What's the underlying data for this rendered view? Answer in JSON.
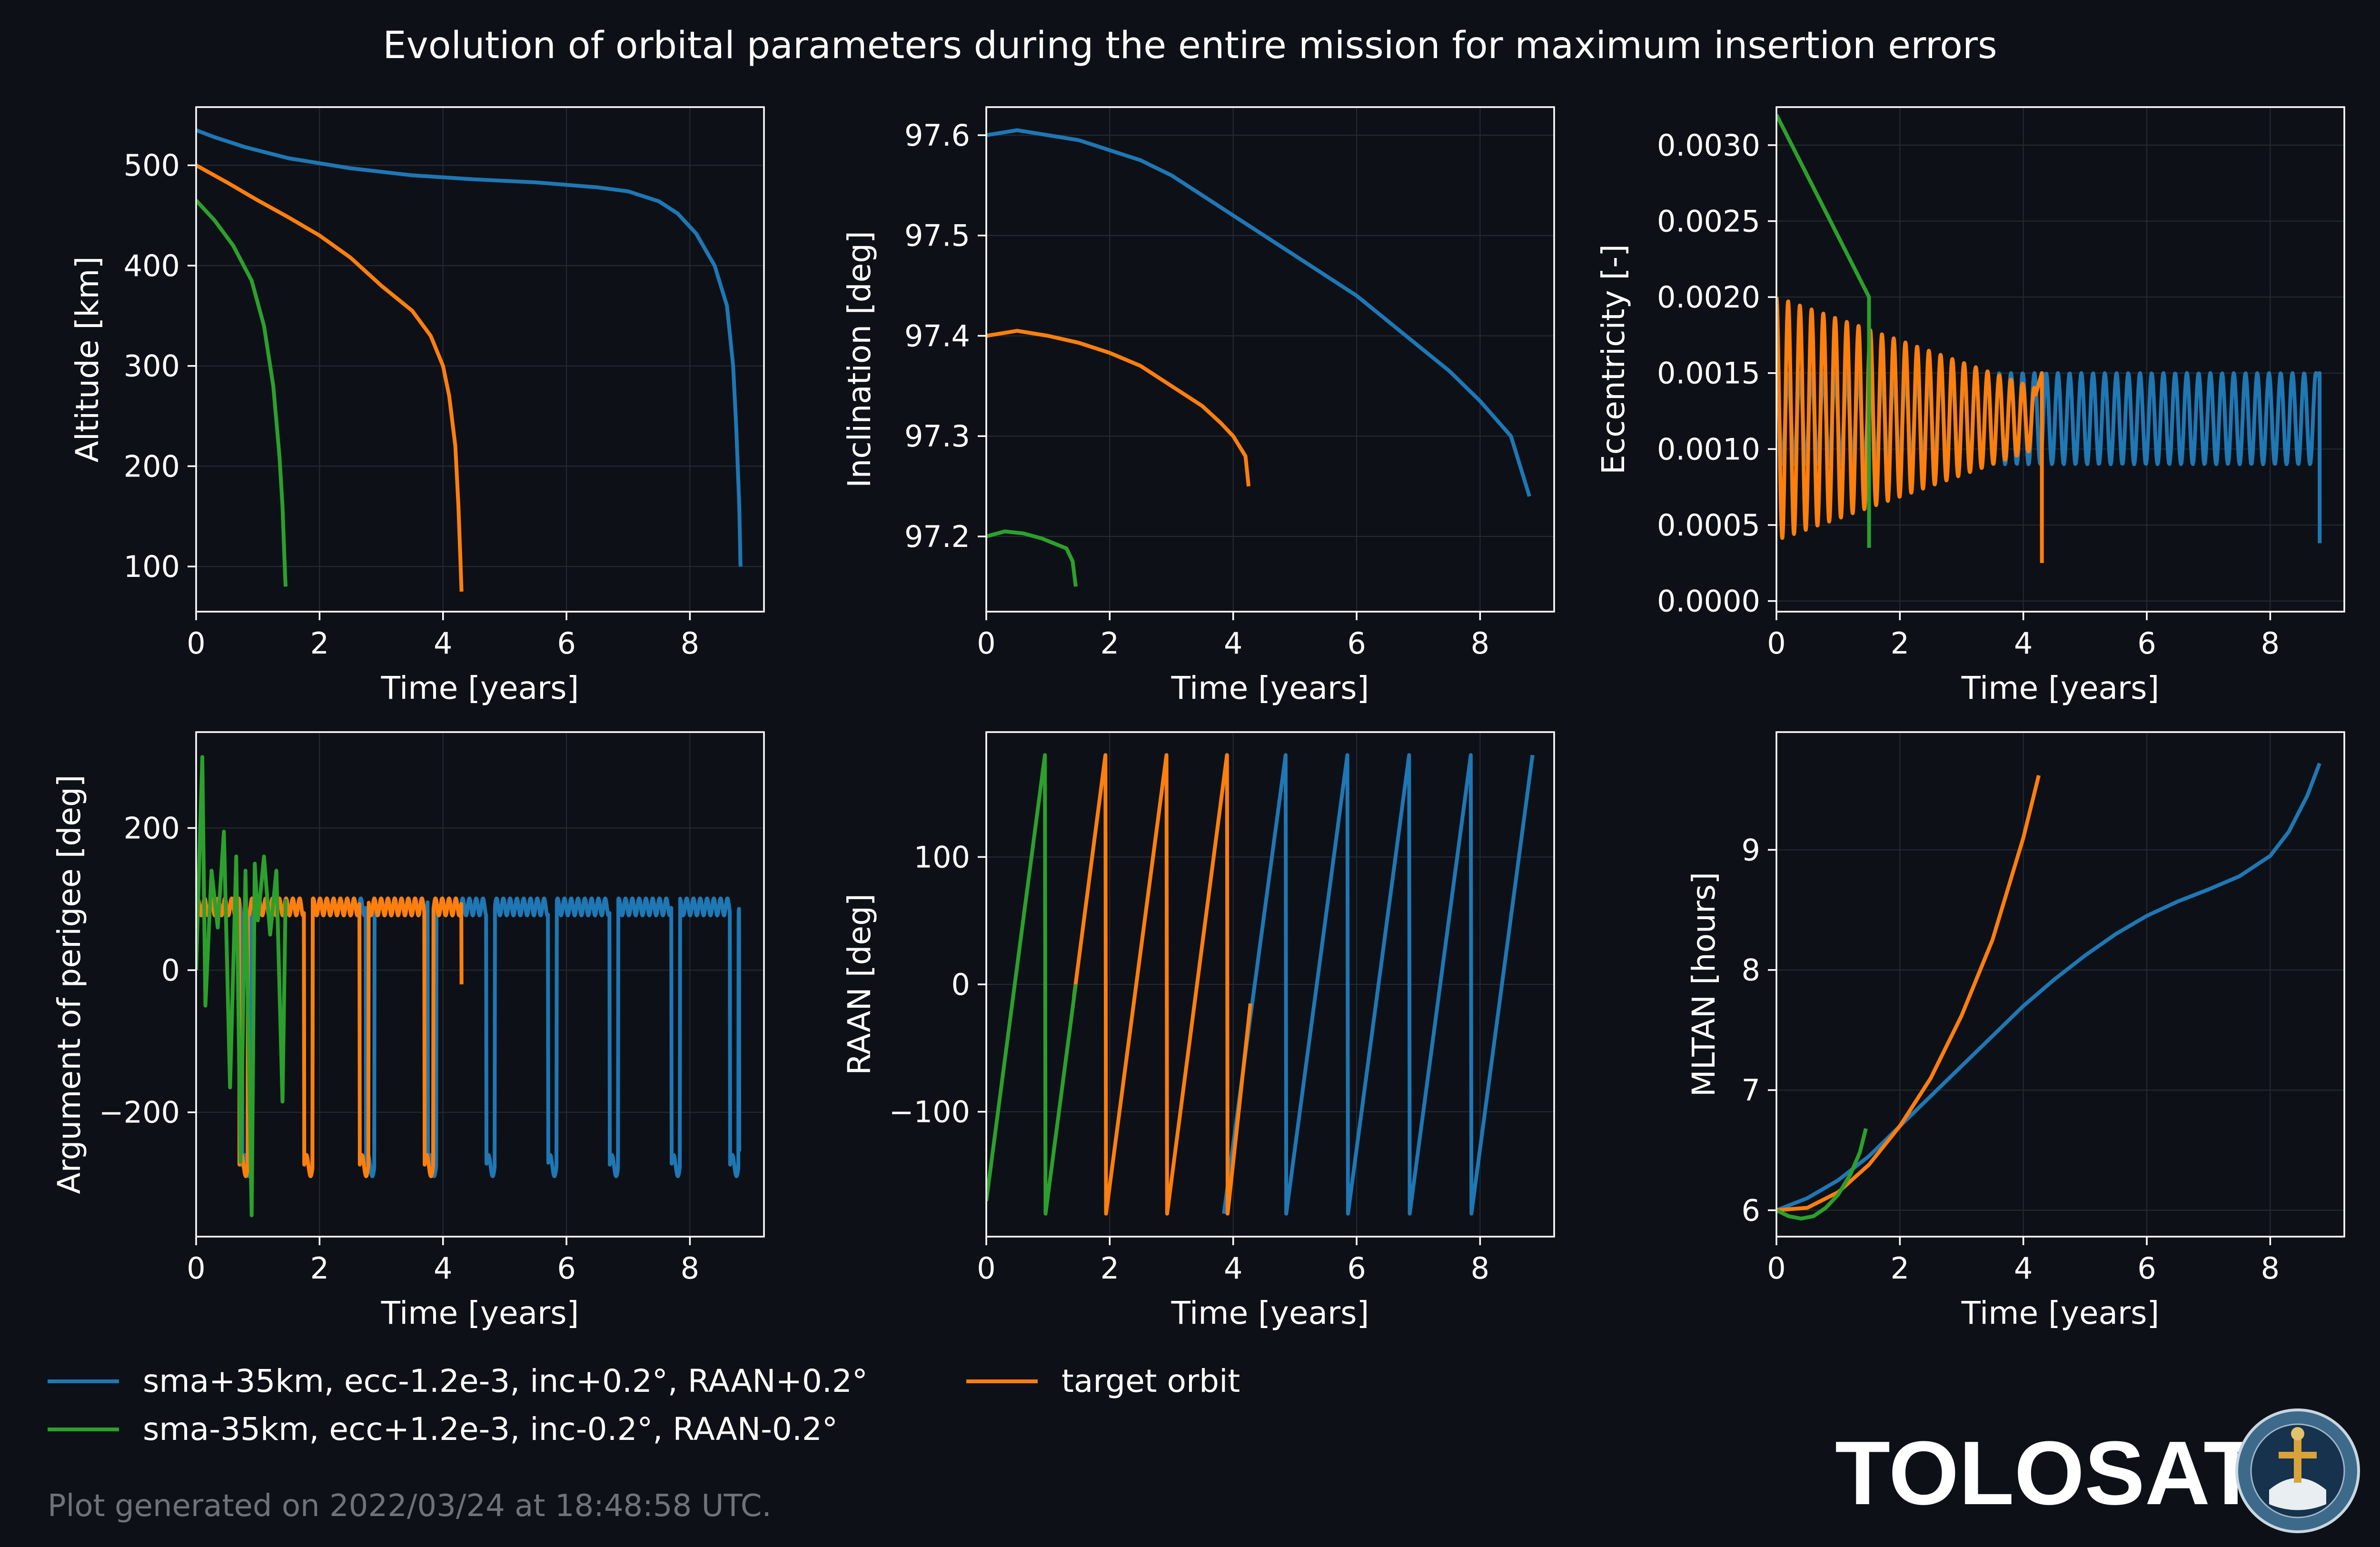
{
  "title": "Evolution of orbital parameters during the entire mission for maximum insertion errors",
  "footer": "Plot generated on 2022/03/24 at 18:48:58 UTC.",
  "brand": "TOLOSAT",
  "logo_text": [
    "ASTREOSUPAERO",
    "TOLOSAT"
  ],
  "colors": {
    "background": "#0d1117",
    "axes_bg": "#0d1117",
    "axes_edge": "#ffffff",
    "grid": "#262b33",
    "blue": "#1f77b4",
    "orange": "#ff7f0e",
    "green": "#2ca02c",
    "footer": "#6e7379"
  },
  "legend": [
    {
      "label": "sma+35km, ecc-1.2e-3, inc+0.2°, RAAN+0.2°",
      "color": "#1f77b4"
    },
    {
      "label": "target orbit",
      "color": "#ff7f0e"
    },
    {
      "label": "sma-35km, ecc+1.2e-3, inc-0.2°, RAAN-0.2°",
      "color": "#2ca02c"
    }
  ],
  "chart_data": [
    {
      "type": "line",
      "xlabel": "Time [years]",
      "ylabel": "Altitude [km]",
      "xlim": [
        0,
        9.2
      ],
      "ylim": [
        55,
        558
      ],
      "xticks": [
        0,
        2,
        4,
        6,
        8
      ],
      "xticklabels": [
        "0",
        "2",
        "4",
        "6",
        "8"
      ],
      "yticks": [
        100,
        200,
        300,
        400,
        500
      ],
      "yticklabels": [
        "100",
        "200",
        "300",
        "400",
        "500"
      ],
      "grid": true,
      "series": [
        {
          "color": "#1f77b4",
          "x": [
            0,
            0.3,
            0.8,
            1.5,
            2.5,
            3.5,
            4.5,
            5.5,
            6.5,
            7.0,
            7.5,
            7.8,
            8.1,
            8.4,
            8.6,
            8.7,
            8.75,
            8.8,
            8.82
          ],
          "y": [
            535,
            528,
            518,
            507,
            497,
            490,
            486,
            483,
            478,
            474,
            464,
            452,
            432,
            400,
            360,
            300,
            240,
            160,
            100
          ]
        },
        {
          "color": "#ff7f0e",
          "x": [
            0,
            0.5,
            1.0,
            1.5,
            2.0,
            2.5,
            3.0,
            3.5,
            3.8,
            4.0,
            4.1,
            4.2,
            4.25,
            4.28,
            4.3
          ],
          "y": [
            500,
            483,
            465,
            448,
            430,
            408,
            380,
            355,
            330,
            300,
            270,
            220,
            160,
            110,
            75
          ]
        },
        {
          "color": "#2ca02c",
          "x": [
            0,
            0.3,
            0.6,
            0.9,
            1.1,
            1.25,
            1.35,
            1.4,
            1.43,
            1.45
          ],
          "y": [
            465,
            445,
            420,
            385,
            340,
            280,
            210,
            160,
            110,
            80
          ]
        }
      ]
    },
    {
      "type": "line",
      "xlabel": "Time [years]",
      "ylabel": "Inclination [deg]",
      "xlim": [
        0,
        9.2
      ],
      "ylim": [
        97.125,
        97.628
      ],
      "xticks": [
        0,
        2,
        4,
        6,
        8
      ],
      "xticklabels": [
        "0",
        "2",
        "4",
        "6",
        "8"
      ],
      "yticks": [
        97.2,
        97.3,
        97.4,
        97.5,
        97.6
      ],
      "yticklabels": [
        "97.2",
        "97.3",
        "97.4",
        "97.5",
        "97.6"
      ],
      "grid": true,
      "series": [
        {
          "color": "#1f77b4",
          "x": [
            0,
            0.5,
            1.0,
            1.5,
            2.0,
            2.5,
            3.0,
            3.5,
            4.0,
            4.5,
            5.0,
            5.5,
            6.0,
            6.5,
            7.0,
            7.5,
            8.0,
            8.5,
            8.8
          ],
          "y": [
            97.6,
            97.605,
            97.6,
            97.595,
            97.585,
            97.575,
            97.56,
            97.54,
            97.52,
            97.5,
            97.48,
            97.46,
            97.44,
            97.415,
            97.39,
            97.365,
            97.335,
            97.3,
            97.24
          ]
        },
        {
          "color": "#ff7f0e",
          "x": [
            0,
            0.5,
            1.0,
            1.5,
            2.0,
            2.5,
            3.0,
            3.5,
            3.8,
            4.0,
            4.2,
            4.25
          ],
          "y": [
            97.4,
            97.405,
            97.4,
            97.393,
            97.383,
            97.37,
            97.35,
            97.33,
            97.313,
            97.3,
            97.28,
            97.25
          ]
        },
        {
          "color": "#2ca02c",
          "x": [
            0,
            0.3,
            0.6,
            0.9,
            1.1,
            1.3,
            1.4,
            1.45
          ],
          "y": [
            97.2,
            97.205,
            97.203,
            97.198,
            97.193,
            97.188,
            97.175,
            97.15
          ]
        }
      ]
    },
    {
      "type": "line",
      "xlabel": "Time [years]",
      "ylabel": "Eccentricity [-]",
      "xlim": [
        0,
        9.2
      ],
      "ylim": [
        -7e-05,
        0.00325
      ],
      "xticks": [
        0,
        2,
        4,
        6,
        8
      ],
      "xticklabels": [
        "0",
        "2",
        "4",
        "6",
        "8"
      ],
      "yticks": [
        0.0,
        0.0005,
        0.001,
        0.0015,
        0.002,
        0.0025,
        0.003
      ],
      "yticklabels": [
        "0.0000",
        "0.0005",
        "0.0010",
        "0.0015",
        "0.0020",
        "0.0025",
        "0.0030"
      ],
      "grid": true,
      "series": [
        {
          "color": "#1f77b4",
          "x": [
            0,
            8.75,
            8.8
          ],
          "oscillation": {
            "center": 0.0012,
            "amplitude": 0.0003,
            "period_years": 0.19
          },
          "end_y": 0.00038
        },
        {
          "color": "#ff7f0e",
          "x": [
            0,
            4.2,
            4.3
          ],
          "oscillation": {
            "center": 0.0012,
            "amplitude_start": 0.0008,
            "amplitude_end": 0.0002,
            "period_years": 0.19
          },
          "end_y": 0.00025
        },
        {
          "color": "#2ca02c",
          "x": [
            0,
            1.5
          ],
          "oscillation": {
            "center": 0.0017,
            "amplitude_start": 0.0015,
            "amplitude_end": 0.0007,
            "period_years": 0.19
          },
          "end_y": 0.00035
        }
      ]
    },
    {
      "type": "line",
      "xlabel": "Time [years]",
      "ylabel": "Argument of perigee [deg]",
      "xlim": [
        0,
        9.2
      ],
      "ylim": [
        -375,
        335
      ],
      "xticks": [
        0,
        2,
        4,
        6,
        8
      ],
      "xticklabels": [
        "0",
        "2",
        "4",
        "6",
        "8"
      ],
      "yticks": [
        -200,
        0,
        200
      ],
      "yticklabels": [
        "−200",
        "0",
        "200"
      ],
      "grid": true,
      "series": [
        {
          "color": "#1f77b4",
          "x": [
            0,
            8.8
          ],
          "wave": {
            "high": 95,
            "low": -275,
            "drop_times": [
              0.75,
              1.75,
              2.75,
              3.75,
              4.7,
              5.7,
              6.7,
              7.7,
              8.65
            ]
          },
          "end_y": -255
        },
        {
          "color": "#ff7f0e",
          "x": [
            0,
            4.3
          ],
          "wave": {
            "high": 95,
            "low": -275,
            "drop_times": [
              0.7,
              1.75,
              2.65,
              3.7
            ]
          },
          "end_y": -20
        },
        {
          "color": "#2ca02c",
          "x": [
            0,
            0.1,
            0.15,
            0.25,
            0.35,
            0.45,
            0.55,
            0.65,
            0.72,
            0.8,
            0.9,
            0.95,
            1.0,
            1.1,
            1.2,
            1.3,
            1.4,
            1.45
          ],
          "y": [
            0,
            300,
            -50,
            140,
            60,
            195,
            -165,
            160,
            -270,
            140,
            -345,
            150,
            70,
            160,
            50,
            140,
            -185,
            100
          ]
        }
      ]
    },
    {
      "type": "line",
      "xlabel": "Time [years]",
      "ylabel": "RAAN [deg]",
      "xlim": [
        0,
        9.2
      ],
      "ylim": [
        -198,
        198
      ],
      "xticks": [
        0,
        2,
        4,
        6,
        8
      ],
      "xticklabels": [
        "0",
        "2",
        "4",
        "6",
        "8"
      ],
      "yticks": [
        -100,
        0,
        100
      ],
      "yticklabels": [
        "−100",
        "0",
        "100"
      ],
      "grid": true,
      "series": [
        {
          "color": "#1f77b4",
          "x": [
            3.85,
            4.85,
            4.86,
            5.85,
            5.86,
            6.85,
            6.86,
            7.85,
            7.86,
            8.85
          ],
          "y": [
            -180,
            180,
            -180,
            180,
            -180,
            180,
            -180,
            180,
            -180,
            180
          ]
        },
        {
          "color": "#ff7f0e",
          "x": [
            1.42,
            1.93,
            1.94,
            2.92,
            2.93,
            3.9,
            3.91,
            4.28
          ],
          "y": [
            -10,
            180,
            -180,
            180,
            -180,
            180,
            -180,
            -15
          ]
        },
        {
          "color": "#2ca02c",
          "x": [
            0,
            0.95,
            0.96,
            1.45
          ],
          "y": [
            -170,
            180,
            -180,
            0
          ]
        }
      ]
    },
    {
      "type": "line",
      "xlabel": "Time [years]",
      "ylabel": "MLTAN [hours]",
      "xlim": [
        0,
        9.2
      ],
      "ylim": [
        5.78,
        9.98
      ],
      "xticks": [
        0,
        2,
        4,
        6,
        8
      ],
      "xticklabels": [
        "0",
        "2",
        "4",
        "6",
        "8"
      ],
      "yticks": [
        6,
        7,
        8,
        9
      ],
      "yticklabels": [
        "6",
        "7",
        "8",
        "9"
      ],
      "grid": true,
      "series": [
        {
          "color": "#1f77b4",
          "x": [
            0,
            0.5,
            1.0,
            1.5,
            2.0,
            2.5,
            3.0,
            3.5,
            4.0,
            4.5,
            5.0,
            5.5,
            6.0,
            6.5,
            7.0,
            7.5,
            8.0,
            8.3,
            8.6,
            8.8
          ],
          "y": [
            6.0,
            6.1,
            6.25,
            6.45,
            6.7,
            6.95,
            7.2,
            7.45,
            7.7,
            7.92,
            8.12,
            8.3,
            8.45,
            8.57,
            8.67,
            8.78,
            8.95,
            9.15,
            9.45,
            9.72
          ]
        },
        {
          "color": "#ff7f0e",
          "x": [
            0,
            0.5,
            1.0,
            1.5,
            2.0,
            2.5,
            3.0,
            3.5,
            4.0,
            4.25
          ],
          "y": [
            6.0,
            6.02,
            6.15,
            6.38,
            6.7,
            7.1,
            7.62,
            8.25,
            9.1,
            9.62
          ]
        },
        {
          "color": "#2ca02c",
          "x": [
            0,
            0.2,
            0.4,
            0.6,
            0.8,
            1.0,
            1.2,
            1.35,
            1.45
          ],
          "y": [
            6.0,
            5.95,
            5.93,
            5.95,
            6.02,
            6.13,
            6.3,
            6.48,
            6.68
          ]
        }
      ]
    }
  ]
}
